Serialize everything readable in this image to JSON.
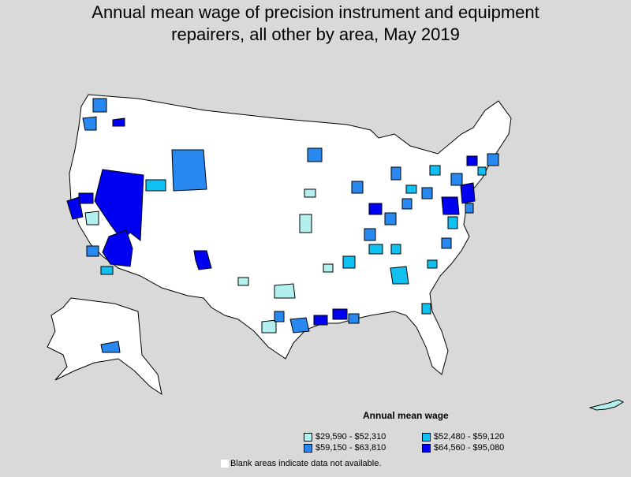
{
  "title_line1": "Annual mean wage of precision instrument and equipment",
  "title_line2": "repairers, all other by area, May 2019",
  "legend": {
    "title": "Annual mean wage",
    "items": [
      {
        "label": "$29,590 - $52,310",
        "color": "#b2f0f0"
      },
      {
        "label": "$52,480 - $59,120",
        "color": "#10c0f0"
      },
      {
        "label": "$59,150 - $63,810",
        "color": "#2888f0"
      },
      {
        "label": "$64,560 - $95,080",
        "color": "#0000f0"
      }
    ]
  },
  "note": "Blank areas indicate data not available.",
  "colors": {
    "background": "#d9d9d9",
    "blank": "#ffffff",
    "border": "#000000"
  }
}
